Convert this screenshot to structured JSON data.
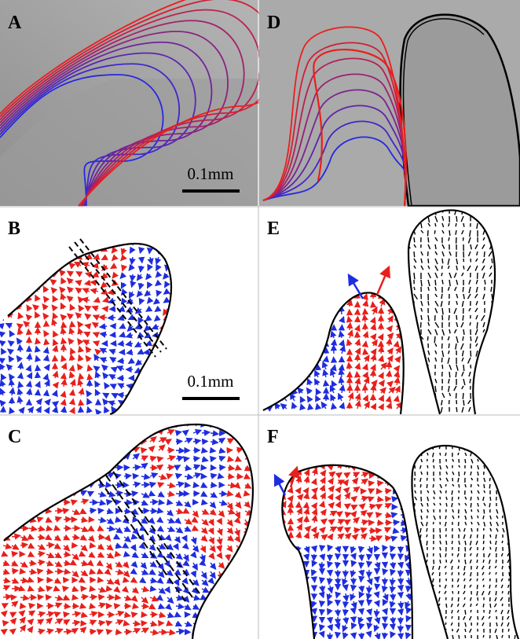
{
  "panels": [
    {
      "label": "A"
    },
    {
      "label": "B"
    },
    {
      "label": "C"
    },
    {
      "label": "D"
    },
    {
      "label": "E"
    },
    {
      "label": "F"
    }
  ],
  "scale_bars": [
    "0.1mm",
    "0.1mm"
  ]
}
